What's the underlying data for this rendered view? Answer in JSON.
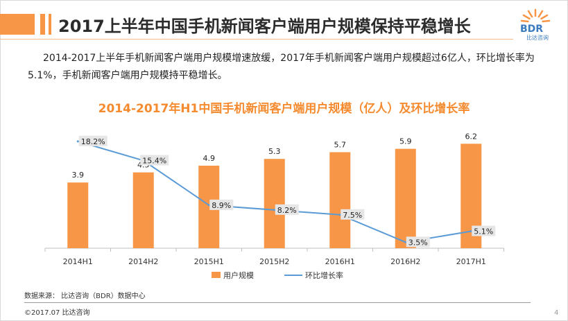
{
  "header": {
    "title": "2017上半年中国手机新闻客户端用户规模保持平稳增长",
    "logo_text": "BDR",
    "logo_sub": "比达咨询"
  },
  "description": "2014-2017上半年手机新闻客户端用户规模增速放缓，2017年手机新闻客户端用户规模超过6亿人，环比增长率为5.1%，手机新闻客户端用户规模持平稳增长。",
  "colors": {
    "accent": "#f79646",
    "bar": "#f79646",
    "line": "#5b9bd5",
    "title_orange": "#f58a2e"
  },
  "chart_data": {
    "type": "bar",
    "title": "2014-2017年H1中国手机新闻客户端用户规模（亿人）及环比增长率",
    "categories": [
      "2014H1",
      "2014H2",
      "2015H1",
      "2015H2",
      "2016H1",
      "2016H2",
      "2017H1"
    ],
    "series": [
      {
        "name": "用户规模",
        "type": "bar",
        "values": [
          3.9,
          4.5,
          4.9,
          5.3,
          5.7,
          5.9,
          6.2
        ],
        "labels": [
          "3.9",
          "4.5",
          "4.9",
          "5.3",
          "5.7",
          "5.9",
          "6.2"
        ]
      },
      {
        "name": "环比增长率",
        "type": "line",
        "values": [
          18.2,
          15.4,
          8.9,
          8.2,
          7.5,
          3.5,
          5.1
        ],
        "labels": [
          "18.2%",
          "15.4%",
          "8.9%",
          "8.2%",
          "7.5%",
          "3.5%",
          "5.1%"
        ]
      }
    ],
    "legend_position": "bottom",
    "grid": false
  },
  "footer": {
    "source": "数据来源：  比达咨询（BDR）数据中心",
    "copyright": "©2017.07   比达咨询",
    "page_number": "4"
  }
}
